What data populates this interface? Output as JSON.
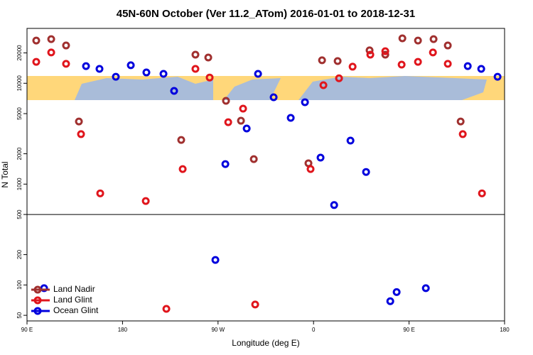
{
  "chart_data": {
    "type": "scatter",
    "title": "45N-60N October (Ver 11.2_ATom)   2016-01-01 to 2018-12-31",
    "xlabel": "Longitude (deg E)",
    "ylabel": "N Total",
    "xlim": [
      90,
      540
    ],
    "ylim": [
      44,
      35000
    ],
    "log_y": true,
    "legend": "lower left",
    "xticks": [
      {
        "value": 90,
        "label": "90 E"
      },
      180,
      {
        "value": 270,
        "label": "90 W"
      },
      {
        "value": 360,
        "label": "0"
      },
      {
        "value": 450,
        "label": "90 E"
      },
      {
        "value": 540,
        "label": "180"
      }
    ],
    "yticks": [
      50,
      100,
      200,
      500,
      1000,
      2000,
      5000,
      10000,
      20000
    ],
    "series": [
      {
        "name": "Land Nadir",
        "color": "#a0302f",
        "x": [
          98.7,
          112.8,
          126.8,
          138.9,
          235.3,
          248.7,
          260.8,
          277.5,
          291.6,
          303.7,
          355.2,
          368.0,
          382.7,
          412.8,
          427.6,
          443.7,
          458.4,
          473.1,
          486.5,
          498.6
        ],
        "values": [
          26500,
          27400,
          23700,
          4180,
          2740,
          19200,
          18000,
          6700,
          4250,
          1770,
          1610,
          16900,
          16600,
          21200,
          19200,
          27900,
          26500,
          27400,
          23700,
          4180
        ]
      },
      {
        "name": "Land Glint",
        "color": "#e0151c",
        "x": [
          98.7,
          112.8,
          126.8,
          140.9,
          159.0,
          201.9,
          221.3,
          236.7,
          248.7,
          262.1,
          279.6,
          293.6,
          305.0,
          357.2,
          369.3,
          384.0,
          396.8,
          413.5,
          427.6,
          443.0,
          458.4,
          472.5,
          486.5,
          500.6,
          518.7
        ],
        "values": [
          16300,
          20200,
          15600,
          3130,
          810,
          680,
          58,
          1410,
          13900,
          11400,
          4110,
          5600,
          64,
          1410,
          9570,
          11200,
          14600,
          19200,
          20800,
          15300,
          16300,
          20200,
          15600,
          3130,
          810
        ]
      },
      {
        "name": "Ocean Glint",
        "color": "#0000dd",
        "x": [
          106.1,
          145.6,
          158.3,
          173.7,
          187.8,
          202.5,
          218.6,
          228.6,
          267.5,
          276.9,
          297.0,
          307.7,
          322.4,
          338.5,
          351.9,
          366.6,
          379.4,
          394.8,
          409.5,
          432.3,
          438.3,
          465.8,
          505.3,
          518.0,
          533.4
        ],
        "values": [
          93,
          14800,
          13900,
          11600,
          15100,
          12800,
          12400,
          8400,
          177,
          1580,
          3560,
          12400,
          7260,
          4540,
          6490,
          1830,
          620,
          2700,
          1320,
          69,
          85,
          93,
          14800,
          13900,
          11600
        ]
      }
    ]
  }
}
